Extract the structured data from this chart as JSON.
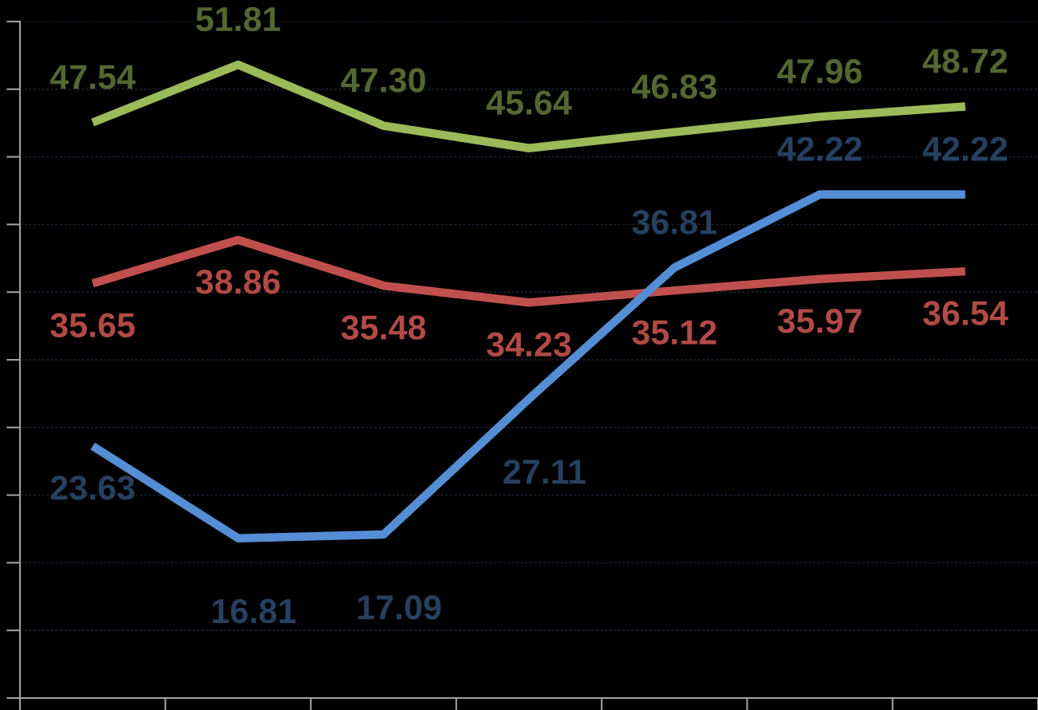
{
  "chart_data": {
    "type": "line",
    "categories": [
      null,
      null,
      null,
      null,
      null,
      null,
      null
    ],
    "series": [
      {
        "color": "#9bbb59",
        "values": [
          47.54,
          51.81,
          47.3,
          45.64,
          46.83,
          47.96,
          48.72
        ],
        "value_labels": [
          "47.54",
          "51.81",
          "47.30",
          "45.64",
          "46.83",
          "47.96",
          "48.72"
        ]
      },
      {
        "color": "#c0504d",
        "values": [
          35.65,
          38.86,
          35.48,
          34.23,
          35.12,
          35.97,
          36.54
        ],
        "value_labels": [
          "35.65",
          "38.86",
          "35.48",
          "34.23",
          "35.12",
          "35.97",
          "36.54"
        ]
      },
      {
        "color": "#558ed5",
        "values": [
          23.63,
          16.81,
          17.09,
          27.11,
          36.81,
          42.22,
          42.22
        ],
        "value_labels": [
          "23.63",
          "16.81",
          "17.09",
          "27.11",
          "36.81",
          "42.22",
          "42.22"
        ]
      }
    ],
    "ylim": [
      5,
      55
    ],
    "yticks": [
      {
        "value": 5,
        "label": null
      },
      {
        "value": 10,
        "label": null
      },
      {
        "value": 15,
        "label": null
      },
      {
        "value": 20,
        "label": null
      },
      {
        "value": 25,
        "label": null
      },
      {
        "value": 30,
        "label": null
      },
      {
        "value": 35,
        "label": null
      },
      {
        "value": 40,
        "label": null
      },
      {
        "value": 45,
        "label": null
      },
      {
        "value": 50,
        "label": null
      },
      {
        "value": 55,
        "label": null
      }
    ],
    "grid": "y",
    "marker": "none",
    "line_style": "solid",
    "legend": false
  }
}
